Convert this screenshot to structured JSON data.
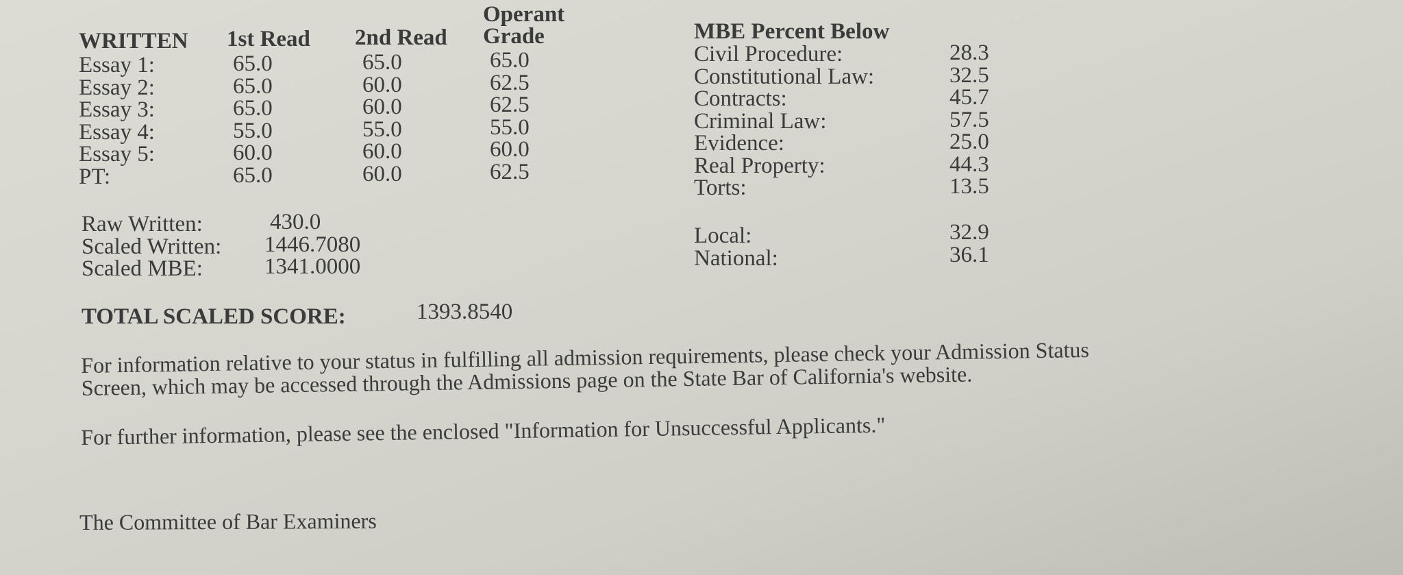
{
  "written": {
    "headers": {
      "section": "WRITTEN",
      "first_read": "1st Read",
      "second_read": "2nd Read",
      "operant_line1": "Operant",
      "operant_line2": "Grade"
    },
    "rows": [
      {
        "label": "Essay 1:",
        "first": "65.0",
        "second": "65.0",
        "grade": "65.0"
      },
      {
        "label": "Essay 2:",
        "first": "65.0",
        "second": "60.0",
        "grade": "62.5"
      },
      {
        "label": "Essay 3:",
        "first": "65.0",
        "second": "60.0",
        "grade": "62.5"
      },
      {
        "label": "Essay 4:",
        "first": "55.0",
        "second": "55.0",
        "grade": "55.0"
      },
      {
        "label": "Essay 5:",
        "first": "60.0",
        "second": "60.0",
        "grade": "60.0"
      },
      {
        "label": "PT:",
        "first": "65.0",
        "second": "60.0",
        "grade": "62.5"
      }
    ]
  },
  "mbe": {
    "header": "MBE Percent Below",
    "rows": [
      {
        "label": "Civil Procedure:",
        "value": "28.3"
      },
      {
        "label": "Constitutional Law:",
        "value": "32.5"
      },
      {
        "label": "Contracts:",
        "value": "45.7"
      },
      {
        "label": "Criminal Law:",
        "value": "57.5"
      },
      {
        "label": "Evidence:",
        "value": "25.0"
      },
      {
        "label": "Real Property:",
        "value": "44.3"
      },
      {
        "label": "Torts:",
        "value": "13.5"
      }
    ],
    "local": {
      "label": "Local:",
      "value": "32.9"
    },
    "national": {
      "label": "National:",
      "value": "36.1"
    }
  },
  "scores": [
    {
      "label": "Raw Written:",
      "value": "430.0"
    },
    {
      "label": "Scaled Written:",
      "value": "1446.7080"
    },
    {
      "label": "Scaled MBE:",
      "value": "1341.0000"
    }
  ],
  "total": {
    "label": "TOTAL SCALED SCORE:",
    "value": "1393.8540"
  },
  "paragraphs": {
    "p1_line1": "For information relative to your status in fulfilling all admission requirements, please check your Admission Status",
    "p1_line2": "Screen, which may be accessed through the Admissions page on the State Bar  of California's website.",
    "p2": "For further information, please see the enclosed \"Information for Unsuccessful Applicants.\""
  },
  "signature": "The Committee of Bar Examiners"
}
